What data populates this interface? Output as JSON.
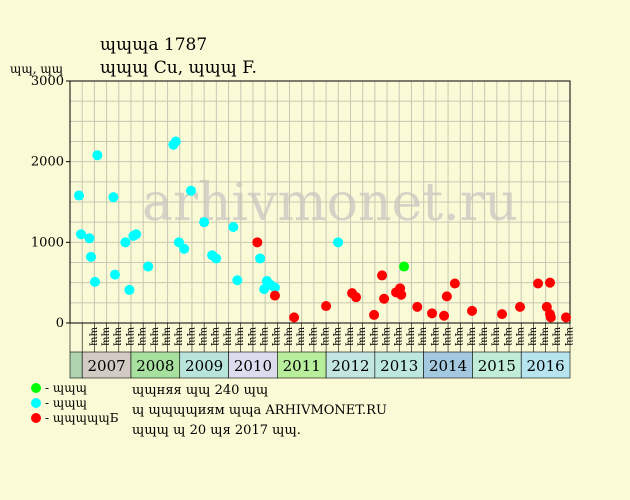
{
  "chart_data": {
    "type": "scatter",
    "title": "ɰɰɰa 1787",
    "subtitle": "ɰɰɰ Cu, ɰɰɰ F.",
    "ylabel": "ɰɰ, ɰɰ",
    "ylim": [
      0,
      3000
    ],
    "yticks": [
      0,
      1000,
      2000,
      3000
    ],
    "grid": true,
    "watermark": "arhivmonet.ru",
    "quarter_labels": [
      "ɰɰ",
      "ɰɰ",
      "ɰɰ",
      "ɰɰ"
    ],
    "years": [
      {
        "label": "2007",
        "color": "#d2cbc4"
      },
      {
        "label": "2008",
        "color": "#a8e0a0"
      },
      {
        "label": "2009",
        "color": "#b8e4dc"
      },
      {
        "label": "2010",
        "color": "#dcdcee"
      },
      {
        "label": "2011",
        "color": "#b8ee9c"
      },
      {
        "label": "2012",
        "color": "#c4e6e2"
      },
      {
        "label": "2013",
        "color": "#bde8e0"
      },
      {
        "label": "2014",
        "color": "#a4c8e0"
      },
      {
        "label": "2015",
        "color": "#c0ecd8"
      },
      {
        "label": "2016",
        "color": "#b8e4f0"
      }
    ],
    "x_start_label": "",
    "x_start_color": "#b0d4b0",
    "x_range": [
      "2006-Q4",
      "2016-Q4"
    ],
    "series": [
      {
        "name": "ɰɰɰ",
        "color": "#00ffff",
        "points": [
          {
            "x": 2006.92,
            "y": 1580
          },
          {
            "x": 2006.97,
            "y": 1100
          },
          {
            "x": 2007.18,
            "y": 1050
          },
          {
            "x": 2007.22,
            "y": 820
          },
          {
            "x": 2007.32,
            "y": 510
          },
          {
            "x": 2007.38,
            "y": 2080
          },
          {
            "x": 2007.78,
            "y": 1560
          },
          {
            "x": 2007.82,
            "y": 600
          },
          {
            "x": 2008.08,
            "y": 1000
          },
          {
            "x": 2008.18,
            "y": 410
          },
          {
            "x": 2008.28,
            "y": 1080
          },
          {
            "x": 2008.35,
            "y": 1100
          },
          {
            "x": 2008.65,
            "y": 700
          },
          {
            "x": 2009.28,
            "y": 2210
          },
          {
            "x": 2009.34,
            "y": 2250
          },
          {
            "x": 2009.42,
            "y": 1000
          },
          {
            "x": 2009.55,
            "y": 920
          },
          {
            "x": 2009.72,
            "y": 1640
          },
          {
            "x": 2010.05,
            "y": 1250
          },
          {
            "x": 2010.25,
            "y": 840
          },
          {
            "x": 2010.35,
            "y": 800
          },
          {
            "x": 2010.78,
            "y": 1190
          },
          {
            "x": 2010.88,
            "y": 530
          },
          {
            "x": 2011.45,
            "y": 800
          },
          {
            "x": 2011.55,
            "y": 420
          },
          {
            "x": 2011.62,
            "y": 520
          },
          {
            "x": 2011.72,
            "y": 470
          },
          {
            "x": 2011.82,
            "y": 440
          },
          {
            "x": 2013.4,
            "y": 1000
          }
        ]
      },
      {
        "name": "ɰɰɰɰɰБ",
        "color": "#ff0000",
        "points": [
          {
            "x": 2011.38,
            "y": 1000
          },
          {
            "x": 2011.82,
            "y": 340
          },
          {
            "x": 2012.3,
            "y": 70
          },
          {
            "x": 2013.1,
            "y": 210
          },
          {
            "x": 2013.75,
            "y": 370
          },
          {
            "x": 2013.85,
            "y": 320
          },
          {
            "x": 2014.3,
            "y": 100
          },
          {
            "x": 2014.5,
            "y": 590
          },
          {
            "x": 2014.55,
            "y": 300
          },
          {
            "x": 2014.85,
            "y": 380
          },
          {
            "x": 2014.95,
            "y": 430
          },
          {
            "x": 2014.98,
            "y": 350
          },
          {
            "x": 2015.38,
            "y": 200
          },
          {
            "x": 2015.75,
            "y": 120
          },
          {
            "x": 2016.05,
            "y": 90
          },
          {
            "x": 2016.12,
            "y": 330
          },
          {
            "x": 2016.32,
            "y": 490
          },
          {
            "x": 2016.75,
            "y": 150
          },
          {
            "x": 2017.5,
            "y": 110
          },
          {
            "x": 2017.95,
            "y": 200
          },
          {
            "x": 2018.4,
            "y": 490
          },
          {
            "x": 2018.7,
            "y": 500
          },
          {
            "x": 2018.62,
            "y": 200
          },
          {
            "x": 2018.7,
            "y": 110
          },
          {
            "x": 2018.72,
            "y": 70
          },
          {
            "x": 2019.1,
            "y": 70
          }
        ]
      },
      {
        "name": "ɰɰɰ",
        "color": "#00ff00",
        "points": [
          {
            "x": 2015.05,
            "y": 700
          }
        ]
      }
    ],
    "legend": [
      {
        "label": "- ɰɰɰ",
        "color": "#00ff00"
      },
      {
        "label": "- ɰɰɰ",
        "color": "#00ffff"
      },
      {
        "label": "- ɰɰɰɰɰБ",
        "color": "#ff0000"
      }
    ],
    "notes": [
      "ɰɰняя ɰɰ 240 ɰɰ",
      "ɰ ɰɰɰɰиям ɰɰa ARHIVMONET.RU",
      "ɰɰɰ ɰ 20 ɰя 2017 ɰɰ."
    ]
  }
}
